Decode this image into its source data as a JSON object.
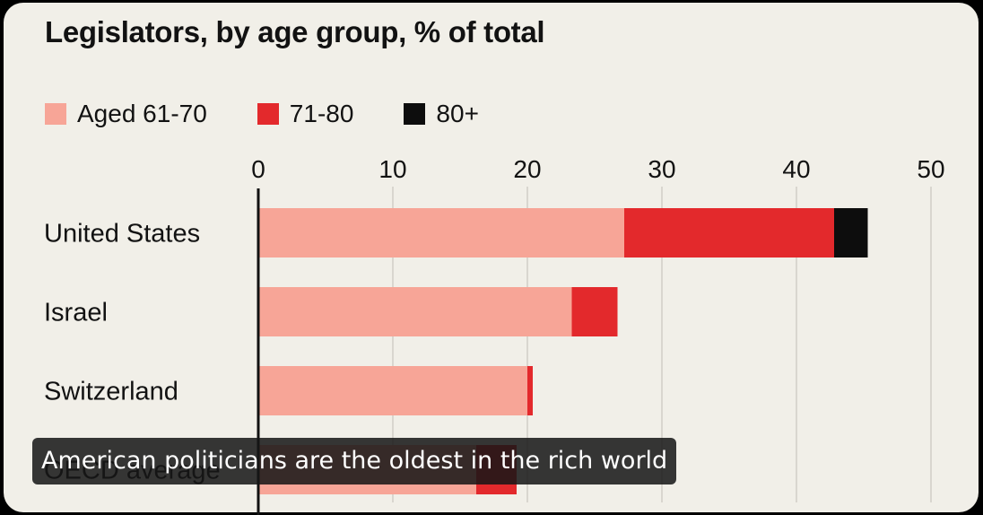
{
  "chart_data": {
    "type": "bar",
    "orientation": "horizontal",
    "stacked": true,
    "title": "Legislators, by age group, % of total",
    "categories": [
      "United States",
      "Israel",
      "Switzerland",
      "OECD average"
    ],
    "series": [
      {
        "name": "Aged 61-70",
        "color": "#f7a597",
        "values": [
          27.2,
          23.3,
          20.0,
          16.2
        ]
      },
      {
        "name": "71-80",
        "color": "#e3292c",
        "values": [
          15.6,
          3.4,
          0.4,
          3.0
        ]
      },
      {
        "name": "80+",
        "color": "#0d0d0d",
        "values": [
          2.5,
          0,
          0,
          0
        ]
      }
    ],
    "xticks": [
      0,
      10,
      20,
      30,
      40,
      50
    ],
    "xtick_labels": [
      "0",
      "10",
      "20",
      "30",
      "40",
      "50"
    ],
    "xlim": [
      0,
      50
    ],
    "xlabel": "",
    "ylabel": "",
    "grid": true,
    "legend_position": "top-left"
  },
  "caption": "American politicians are the oldest in the rich world"
}
